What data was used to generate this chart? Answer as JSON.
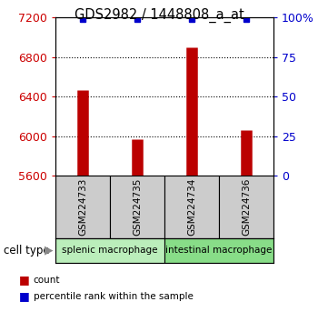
{
  "title": "GDS2982 / 1448808_a_at",
  "samples": [
    "GSM224733",
    "GSM224735",
    "GSM224734",
    "GSM224736"
  ],
  "counts": [
    6470,
    5970,
    6900,
    6060
  ],
  "percentile_ranks": [
    99,
    99,
    99,
    99
  ],
  "cell_types_group1": "splenic macrophage",
  "cell_types_group2": "intestinal macrophage",
  "left_ylim": [
    5600,
    7200
  ],
  "right_ylim": [
    0,
    100
  ],
  "left_yticks": [
    5600,
    6000,
    6400,
    6800,
    7200
  ],
  "right_yticks": [
    0,
    25,
    50,
    75,
    100
  ],
  "bar_color": "#bb0000",
  "dot_color": "#0000cc",
  "left_axis_color": "#cc0000",
  "right_axis_color": "#0000cc",
  "sample_box_color": "#cccccc",
  "ct_color1": "#bbeebb",
  "ct_color2": "#88dd88",
  "cell_type_label": "cell type",
  "legend_count_label": "count",
  "legend_pct_label": "percentile rank within the sample"
}
